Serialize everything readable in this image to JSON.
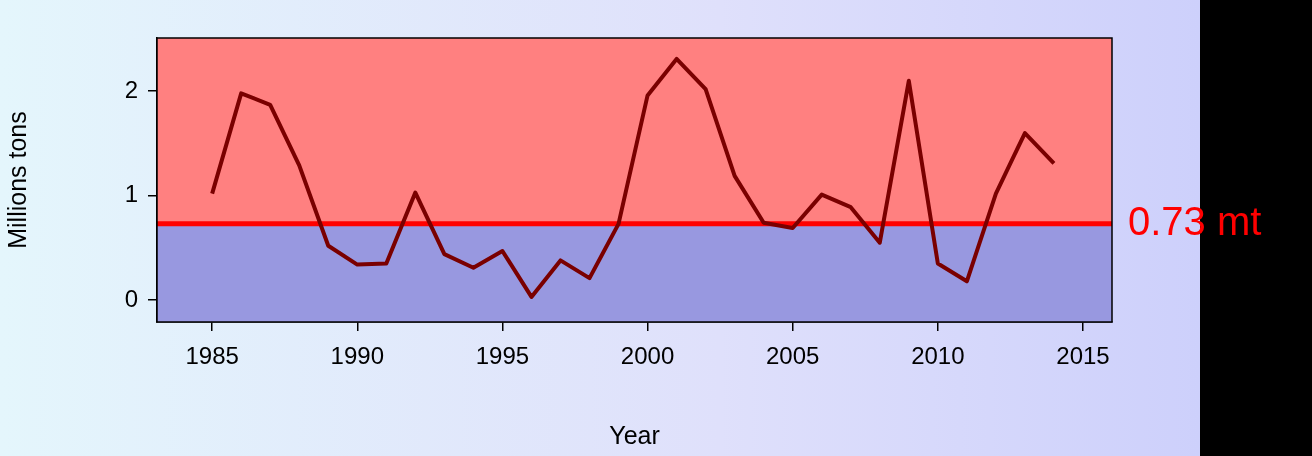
{
  "chart_data": {
    "type": "line",
    "xlabel": "Year",
    "ylabel": "Millions tons",
    "x": [
      1985,
      1986,
      1987,
      1988,
      1989,
      1990,
      1991,
      1992,
      1993,
      1994,
      1995,
      1996,
      1997,
      1998,
      1999,
      2000,
      2001,
      2002,
      2003,
      2004,
      2005,
      2006,
      2007,
      2008,
      2009,
      2010,
      2011,
      2012,
      2013,
      2014
    ],
    "series": [
      {
        "values": [
          1.02,
          1.98,
          1.87,
          1.29,
          0.52,
          0.34,
          0.35,
          1.03,
          0.44,
          0.31,
          0.47,
          0.03,
          0.38,
          0.21,
          0.73,
          1.96,
          2.31,
          2.02,
          1.19,
          0.74,
          0.69,
          1.01,
          0.89,
          0.55,
          2.1,
          0.35,
          0.18,
          1.02,
          1.6,
          1.31
        ],
        "color": "#7a0000"
      }
    ],
    "xlim": [
      1983.1,
      2016
    ],
    "xticks": [
      1985,
      1990,
      1995,
      2000,
      2005,
      2010,
      2015
    ],
    "ylim": [
      -0.21,
      2.51
    ],
    "yticks": [
      0,
      1,
      2
    ],
    "ref_lines": [
      {
        "axis": "y",
        "value": 0.73,
        "label": "0.73 mt",
        "color": "#ff0000"
      }
    ],
    "bands": [
      {
        "axis": "y",
        "from": 0.73,
        "to": 2.51,
        "color": "#ff8080"
      },
      {
        "axis": "y",
        "from": -0.21,
        "to": 0.73,
        "color": "#9898e0"
      }
    ],
    "legend": false,
    "marker": "none",
    "line_style": "solid"
  }
}
